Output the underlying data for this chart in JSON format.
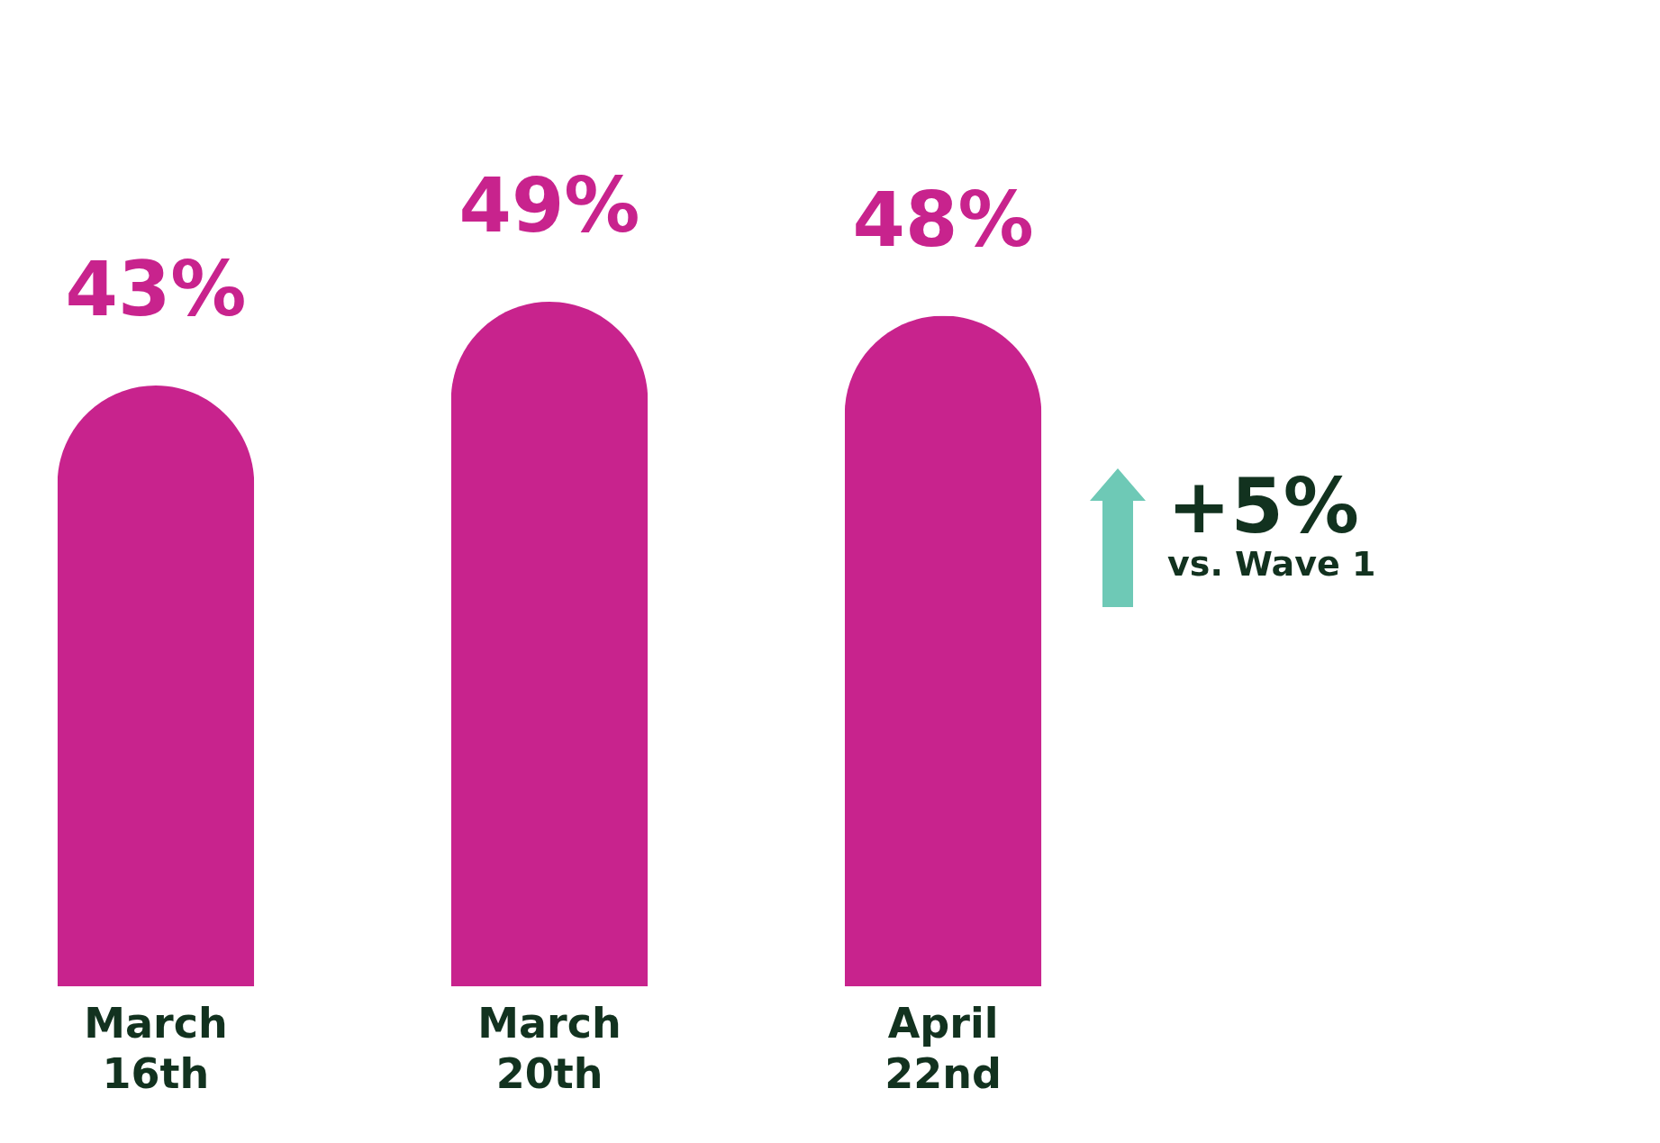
{
  "chart_data": {
    "type": "bar",
    "categories": [
      "March 16th",
      "March 20th",
      "April 22nd"
    ],
    "values": [
      43,
      49,
      48
    ],
    "color": "#c8238d",
    "value_labels": [
      "43%",
      "49%",
      "48%"
    ],
    "annotations": [
      "+5%",
      "vs. Wave 1"
    ]
  }
}
